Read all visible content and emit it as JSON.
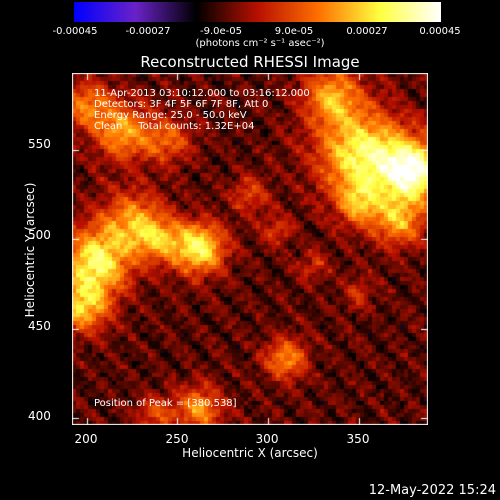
{
  "chart_data": {
    "type": "heatmap",
    "title": "Reconstructed RHESSI Image",
    "xlabel": "Heliocentric X (arcsec)",
    "ylabel": "Heliocentric Y (arcsec)",
    "xlim": [
      192,
      388
    ],
    "ylim": [
      396,
      593
    ],
    "x_ticks": [
      {
        "value": 200,
        "label": "200"
      },
      {
        "value": 250,
        "label": "250"
      },
      {
        "value": 300,
        "label": "300"
      },
      {
        "value": 350,
        "label": "350"
      }
    ],
    "y_ticks": [
      {
        "value": 400,
        "label": "400"
      },
      {
        "value": 450,
        "label": "450"
      },
      {
        "value": 500,
        "label": "500"
      },
      {
        "value": 550,
        "label": "550"
      }
    ],
    "annotations": [
      "11-Apr-2013 03:10:12.000 to 03:16:12.000",
      "Detectors: 3F 4F 5F 6F 7F 8F, Att 0",
      "Energy Range: 25.0 - 50.0 keV",
      "Clean     Total counts: 1.32E+04"
    ],
    "peak_label": "Position of Peak = [380,538]",
    "peak_position": [
      380,
      538
    ],
    "colorbar": {
      "range": [
        -0.00045,
        0.00045
      ],
      "units": "(photons cm⁻² s⁻¹ asec⁻²)",
      "ticks": [
        {
          "value": -0.00045,
          "label": "-0.00045"
        },
        {
          "value": -0.00027,
          "label": "-0.00027"
        },
        {
          "value": -9e-05,
          "label": "-9.0e-05"
        },
        {
          "value": 9e-05,
          "label": "9.0e-05"
        },
        {
          "value": 0.00027,
          "label": "0.00027"
        },
        {
          "value": 0.00045,
          "label": "0.00045"
        }
      ],
      "colors": [
        "#0000ff",
        "#6a22c8",
        "#000000",
        "#b81000",
        "#ff7000",
        "#ffff40",
        "#ffffff"
      ]
    },
    "sources": [
      {
        "x": 380,
        "y": 538,
        "amp": 1.0,
        "sigma": 12
      },
      {
        "x": 352,
        "y": 548,
        "amp": 0.85,
        "sigma": 17
      },
      {
        "x": 335,
        "y": 580,
        "amp": 0.6,
        "sigma": 11
      },
      {
        "x": 372,
        "y": 510,
        "amp": 0.55,
        "sigma": 10
      },
      {
        "x": 350,
        "y": 520,
        "amp": 0.5,
        "sigma": 9
      },
      {
        "x": 220,
        "y": 560,
        "amp": 0.6,
        "sigma": 11
      },
      {
        "x": 200,
        "y": 575,
        "amp": 0.5,
        "sigma": 9
      },
      {
        "x": 245,
        "y": 555,
        "amp": 0.4,
        "sigma": 9
      },
      {
        "x": 225,
        "y": 510,
        "amp": 0.55,
        "sigma": 12
      },
      {
        "x": 205,
        "y": 487,
        "amp": 0.85,
        "sigma": 13
      },
      {
        "x": 198,
        "y": 462,
        "amp": 0.65,
        "sigma": 10
      },
      {
        "x": 262,
        "y": 495,
        "amp": 0.85,
        "sigma": 10
      },
      {
        "x": 240,
        "y": 500,
        "amp": 0.5,
        "sigma": 9
      },
      {
        "x": 290,
        "y": 525,
        "amp": 0.35,
        "sigma": 7
      },
      {
        "x": 305,
        "y": 505,
        "amp": 0.3,
        "sigma": 6
      },
      {
        "x": 310,
        "y": 433,
        "amp": 0.55,
        "sigma": 8
      },
      {
        "x": 262,
        "y": 405,
        "amp": 0.55,
        "sigma": 9
      },
      {
        "x": 238,
        "y": 402,
        "amp": 0.35,
        "sigma": 7
      },
      {
        "x": 350,
        "y": 470,
        "amp": 0.25,
        "sigma": 6
      },
      {
        "x": 325,
        "y": 485,
        "amp": 0.25,
        "sigma": 6
      }
    ]
  },
  "timestamp": "12-May-2022 15:24"
}
